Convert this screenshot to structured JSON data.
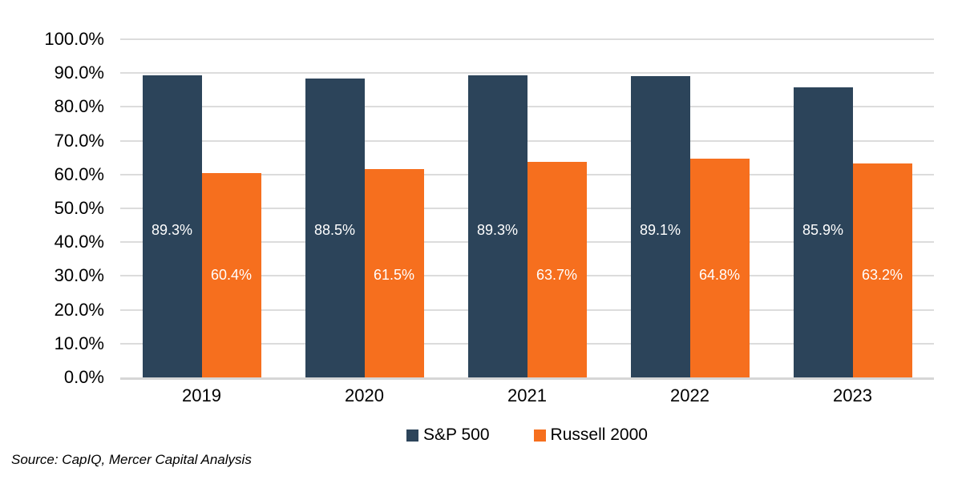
{
  "source": "Source: CapIQ, Mercer Capital Analysis",
  "colors": {
    "sp500": "#2C445A",
    "russell2000": "#F66F1E",
    "gridline": "#DCDCDC",
    "axis_line": "#D6D6D6",
    "data_label_text": "#FFFFFF",
    "tick_text": "#000000",
    "background": "#FFFFFF"
  },
  "chart_data": {
    "type": "bar",
    "categories": [
      "2019",
      "2020",
      "2021",
      "2022",
      "2023"
    ],
    "series": [
      {
        "name": "S&P 500",
        "color": "#2C445A",
        "values": [
          89.3,
          88.5,
          89.3,
          89.1,
          85.9
        ]
      },
      {
        "name": "Russell 2000",
        "color": "#F66F1E",
        "values": [
          60.4,
          61.5,
          63.7,
          64.8,
          63.2
        ]
      }
    ],
    "title": "",
    "xlabel": "",
    "ylabel": "",
    "ylim": [
      0,
      100
    ],
    "ytick_step": 10,
    "ytick_labels": [
      "0.0%",
      "10.0%",
      "20.0%",
      "30.0%",
      "40.0%",
      "50.0%",
      "60.0%",
      "70.0%",
      "80.0%",
      "90.0%",
      "100.0%"
    ],
    "data_labels": {
      "sp500": [
        "89.3%",
        "88.5%",
        "89.3%",
        "89.1%",
        "85.9%"
      ],
      "russell2000": [
        "60.4%",
        "61.5%",
        "63.7%",
        "64.8%",
        "63.2%"
      ]
    },
    "grid": true,
    "legend_position": "bottom"
  }
}
